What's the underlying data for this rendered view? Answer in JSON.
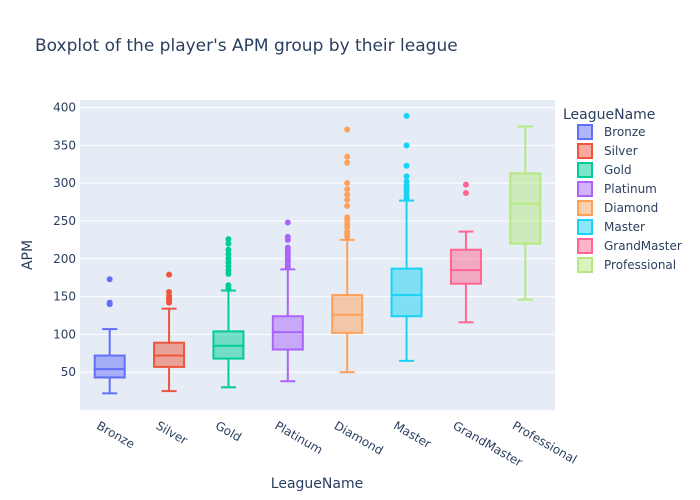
{
  "chart_data": {
    "type": "box",
    "title": "Boxplot of the player's APM group by their league",
    "xlabel": "LeagueName",
    "ylabel": "APM",
    "ylim": [
      0,
      410
    ],
    "yticks": [
      50,
      100,
      150,
      200,
      250,
      300,
      350,
      400
    ],
    "grid": true,
    "legend_title": "LeagueName",
    "legend_position": "right",
    "series": [
      {
        "name": "Bronze",
        "color": "#636efa",
        "whisker_low": 22,
        "q1": 43,
        "median": 54,
        "q3": 72,
        "whisker_high": 107,
        "outliers": [
          140,
          142,
          173
        ]
      },
      {
        "name": "Silver",
        "color": "#ef553b",
        "whisker_low": 25,
        "q1": 57,
        "median": 72,
        "q3": 89,
        "whisker_high": 134,
        "outliers": [
          142,
          145,
          148,
          151,
          156,
          179
        ]
      },
      {
        "name": "Gold",
        "color": "#00cc96",
        "whisker_low": 30,
        "q1": 68,
        "median": 85,
        "q3": 104,
        "whisker_high": 158,
        "outliers": [
          161,
          165,
          180,
          185,
          190,
          195,
          200,
          206,
          212,
          220,
          226
        ]
      },
      {
        "name": "Platinum",
        "color": "#ab63fa",
        "whisker_low": 38,
        "q1": 80,
        "median": 103,
        "q3": 124,
        "whisker_high": 186,
        "outliers": [
          189,
          192,
          196,
          200,
          204,
          208,
          212,
          215,
          225,
          229,
          248
        ]
      },
      {
        "name": "Diamond",
        "color": "#ffa15a",
        "whisker_low": 50,
        "q1": 102,
        "median": 126,
        "q3": 152,
        "whisker_high": 225,
        "outliers": [
          229,
          233,
          236,
          242,
          246,
          251,
          255,
          270,
          278,
          285,
          292,
          300,
          327,
          335,
          371
        ]
      },
      {
        "name": "Master",
        "color": "#19d3f3",
        "whisker_low": 65,
        "q1": 124,
        "median": 152,
        "q3": 187,
        "whisker_high": 277,
        "outliers": [
          280,
          284,
          289,
          293,
          297,
          302,
          309,
          323,
          350,
          389
        ]
      },
      {
        "name": "GrandMaster",
        "color": "#ff6692",
        "whisker_low": 116,
        "q1": 167,
        "median": 185,
        "q3": 212,
        "whisker_high": 236,
        "outliers": [
          287,
          298
        ]
      },
      {
        "name": "Professional",
        "color": "#b6e880",
        "whisker_low": 146,
        "q1": 220,
        "median": 273,
        "q3": 313,
        "whisker_high": 375,
        "outliers": []
      }
    ]
  }
}
